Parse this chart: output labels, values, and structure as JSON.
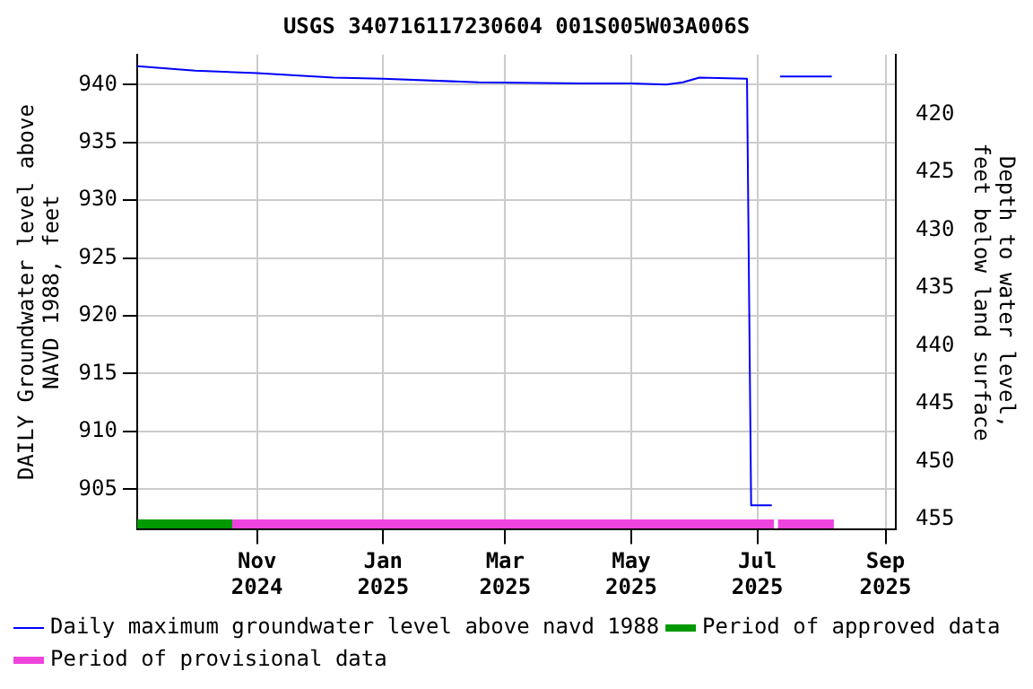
{
  "chart_data": {
    "type": "line",
    "title": "USGS 340716117230604 001S005W03A006S",
    "ylabel": "DAILY Groundwater level above NAVD 1988, feet",
    "y2label": "Depth to water level, feet below land surface",
    "xlim": [
      "2024-09-04",
      "2025-09-06"
    ],
    "xticks": [
      {
        "value": "2024-11-01",
        "label": "Nov 2024"
      },
      {
        "value": "2025-01-01",
        "label": "Jan 2025"
      },
      {
        "value": "2025-03-01",
        "label": "Mar 2025"
      },
      {
        "value": "2025-05-01",
        "label": "May 2025"
      },
      {
        "value": "2025-07-01",
        "label": "Jul 2025"
      },
      {
        "value": "2025-09-01",
        "label": "Sep 2025"
      }
    ],
    "ylim": [
      901.5,
      942.6
    ],
    "yticks": [
      905,
      910,
      915,
      920,
      925,
      930,
      935,
      940
    ],
    "y2lim": [
      455.9,
      414.8
    ],
    "y2ticks": [
      420,
      425,
      430,
      435,
      440,
      445,
      450,
      455
    ],
    "grid": true,
    "legend": "bottom",
    "marker": "none",
    "line_style": "solid",
    "series": [
      {
        "name": "Daily maximum groundwater level above navd 1988",
        "color": "#0000ff",
        "x": [
          "2024-09-04",
          "2024-10-02",
          "2024-11-01",
          "2024-12-08",
          "2025-01-01",
          "2025-02-16",
          "2025-04-07",
          "2025-05-01",
          "2025-05-18",
          "2025-05-26",
          "2025-06-03",
          "2025-06-26",
          "2025-06-27",
          "2025-06-28",
          "2025-07-08",
          "2025-07-10",
          "2025-07-12",
          "2025-08-06"
        ],
        "values": [
          941.6,
          941.2,
          941.0,
          940.6,
          940.5,
          940.2,
          940.1,
          940.1,
          940.0,
          940.2,
          940.6,
          940.5,
          922.0,
          903.6,
          903.6,
          null,
          940.7,
          940.7
        ]
      },
      {
        "name": "Period of approved data",
        "color": "#009900",
        "x": [
          "2024-09-04",
          "2024-10-20"
        ],
        "values": [
          902,
          902
        ]
      },
      {
        "name": "Period of provisional data",
        "color": "#ee44dd",
        "x": [
          "2024-10-20",
          "2025-07-09",
          "2025-07-10",
          "2025-07-11",
          "2025-08-07"
        ],
        "values": [
          902,
          902,
          null,
          902,
          902
        ]
      }
    ]
  }
}
